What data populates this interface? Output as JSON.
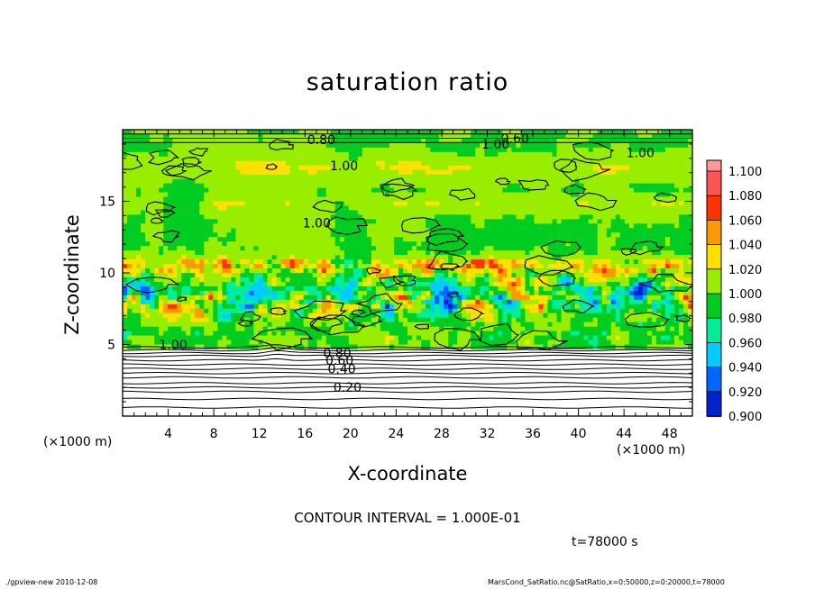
{
  "chart_data": {
    "type": "heatmap",
    "title": "saturation ratio",
    "xlabel": "X-coordinate",
    "ylabel": "Z-coordinate",
    "x_unit": "(×1000 m)",
    "xlim": [
      0,
      50
    ],
    "ylim": [
      0,
      20
    ],
    "x_ticks": [
      "4",
      "8",
      "12",
      "16",
      "20",
      "24",
      "28",
      "32",
      "36",
      "40",
      "44",
      "48"
    ],
    "y_ticks": [
      "5",
      "10",
      "15"
    ],
    "colorbar": {
      "levels": [
        "1.100",
        "1.080",
        "1.060",
        "1.040",
        "1.020",
        "1.000",
        "0.980",
        "0.960",
        "0.940",
        "0.920",
        "0.900"
      ],
      "colors": [
        "#ff9999",
        "#ff5555",
        "#ff3300",
        "#ff9900",
        "#ffe100",
        "#99ee00",
        "#00cc22",
        "#00ee99",
        "#00ccff",
        "#0066ff",
        "#0022cc",
        "#000099",
        "#660099"
      ],
      "range": [
        0.9,
        1.1
      ]
    },
    "contour_labels": [
      {
        "text": "0.20",
        "z": 2.0
      },
      {
        "text": "0.40",
        "z": 3.3
      },
      {
        "text": "0.60",
        "z": 3.9
      },
      {
        "text": "0.80",
        "z": 4.4
      },
      {
        "text": "1.00",
        "z": 5.0
      }
    ],
    "top_contour_labels": [
      "0.80",
      "0.60",
      "1.00",
      "1.00",
      "1.00",
      "1.00"
    ],
    "contour_interval": "CONTOUR INTERVAL = 1.000E-01",
    "time": "t=78000 s"
  },
  "footer": {
    "left": "./gpview-new   2010-12-08",
    "right": "MarsCond_SatRatio.nc@SatRatio,x=0:50000,z=0:20000,t=78000"
  }
}
